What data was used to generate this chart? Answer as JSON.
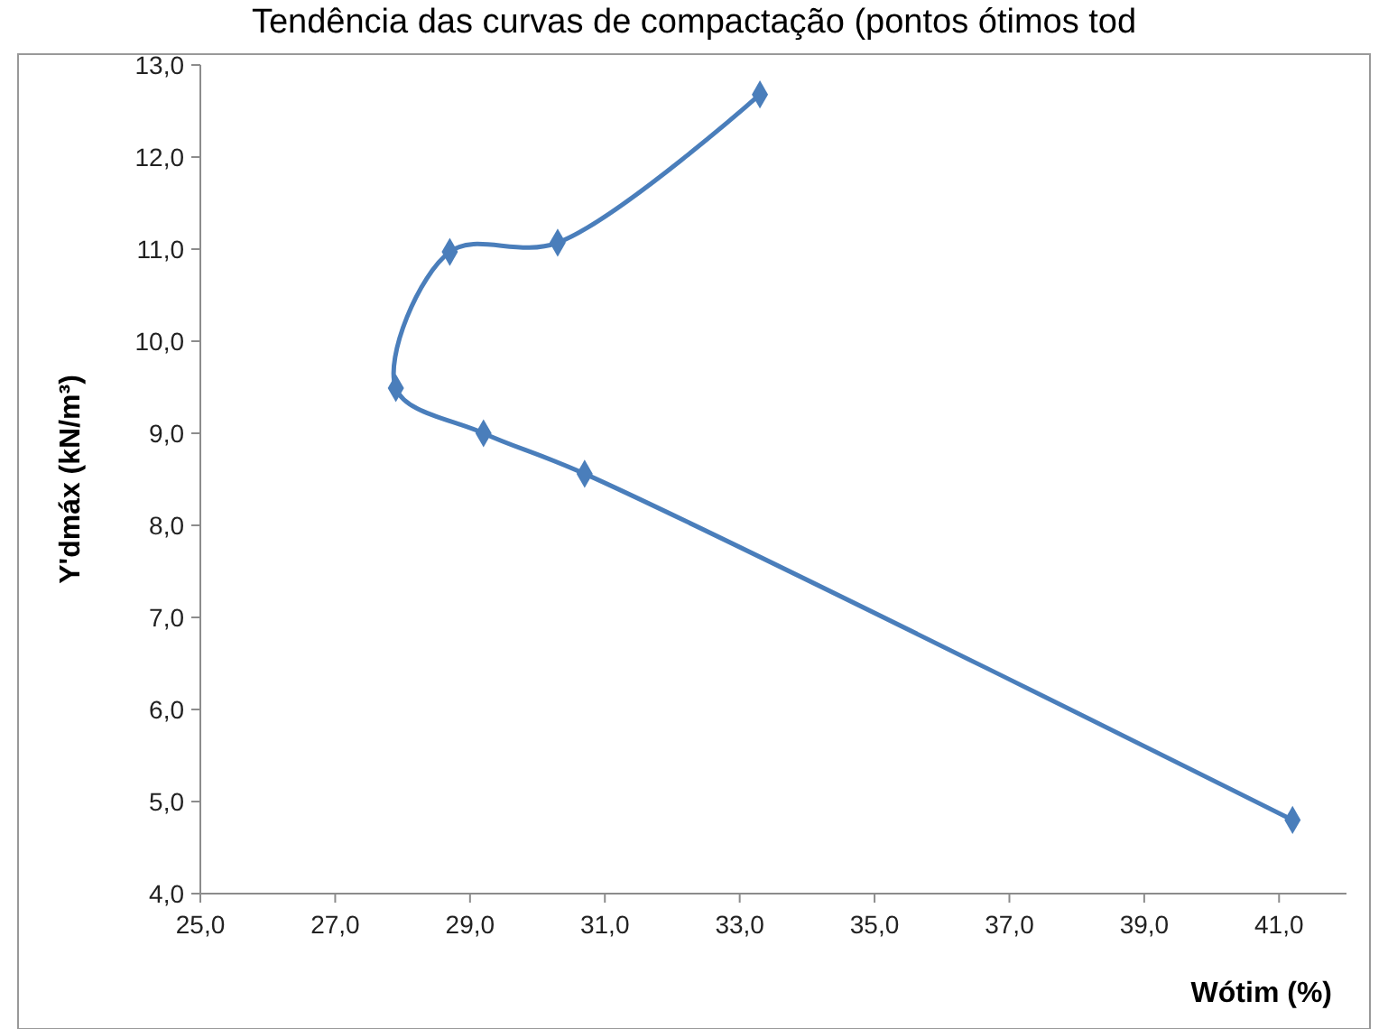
{
  "chart_data": {
    "type": "line",
    "title": "Tendência das curvas de compactação (pontos ótimos tod",
    "xlabel": "Wótim (%)",
    "ylabel": "Y'dmáx (kN/m³)",
    "x": [
      41.2,
      30.7,
      29.2,
      27.9,
      28.7,
      30.3,
      33.3
    ],
    "series": [
      {
        "color": "#4a7ebb",
        "values": [
          4.8,
          8.56,
          9.0,
          9.49,
          10.97,
          11.07,
          12.68
        ]
      }
    ],
    "xlim": [
      25,
      42
    ],
    "xticks": [
      {
        "value": 25,
        "label": "25,0"
      },
      {
        "value": 27,
        "label": "27,0"
      },
      {
        "value": 29,
        "label": "29,0"
      },
      {
        "value": 31,
        "label": "31,0"
      },
      {
        "value": 33,
        "label": "33,0"
      },
      {
        "value": 35,
        "label": "35,0"
      },
      {
        "value": 37,
        "label": "37,0"
      },
      {
        "value": 39,
        "label": "39,0"
      },
      {
        "value": 41,
        "label": "41,0"
      }
    ],
    "ylim": [
      4,
      13
    ],
    "yticks": [
      {
        "value": 4,
        "label": "4,0"
      },
      {
        "value": 5,
        "label": "5,0"
      },
      {
        "value": 6,
        "label": "6,0"
      },
      {
        "value": 7,
        "label": "7,0"
      },
      {
        "value": 8,
        "label": "8,0"
      },
      {
        "value": 9,
        "label": "9,0"
      },
      {
        "value": 10,
        "label": "10,0"
      },
      {
        "value": 11,
        "label": "11,0"
      },
      {
        "value": 12,
        "label": "12,0"
      },
      {
        "value": 13,
        "label": "13,0"
      }
    ],
    "grid": false,
    "marker": "diamond",
    "line_style": "solid"
  }
}
